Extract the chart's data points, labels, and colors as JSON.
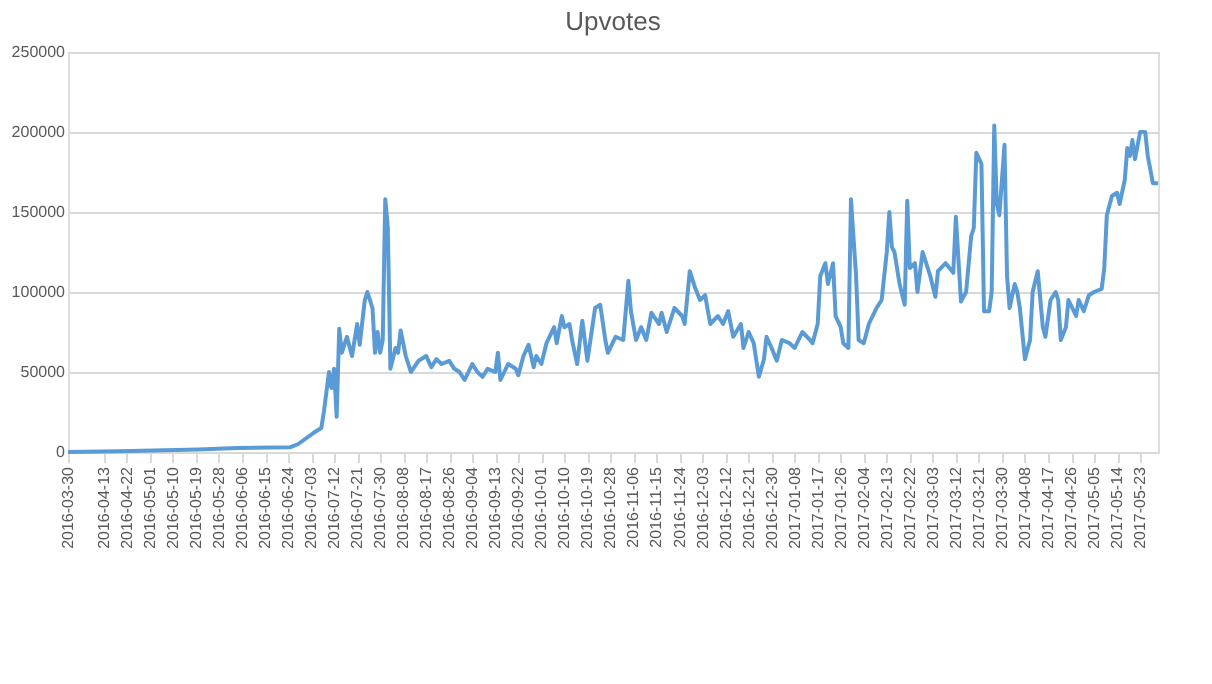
{
  "chart_data": {
    "type": "line",
    "title": "Upvotes",
    "color": "#5b9bd5",
    "grid": "y",
    "x": [
      "2016-03-30",
      "2016-04-19",
      "2016-05-20",
      "2016-06-04",
      "2016-06-25",
      "2016-06-28",
      "2016-07-04",
      "2016-07-07",
      "2016-07-08",
      "2016-07-10",
      "2016-07-11",
      "2016-07-12",
      "2016-07-13",
      "2016-07-14",
      "2016-07-15",
      "2016-07-17",
      "2016-07-19",
      "2016-07-21",
      "2016-07-22",
      "2016-07-24",
      "2016-07-25",
      "2016-07-27",
      "2016-07-28",
      "2016-07-29",
      "2016-07-30",
      "2016-07-31",
      "2016-08-01",
      "2016-08-02",
      "2016-08-03",
      "2016-08-05",
      "2016-08-06",
      "2016-08-07",
      "2016-08-09",
      "2016-08-11",
      "2016-08-14",
      "2016-08-17",
      "2016-08-19",
      "2016-08-21",
      "2016-08-23",
      "2016-08-26",
      "2016-08-28",
      "2016-08-30",
      "2016-09-01",
      "2016-09-04",
      "2016-09-06",
      "2016-09-08",
      "2016-09-10",
      "2016-09-13",
      "2016-09-14",
      "2016-09-15",
      "2016-09-18",
      "2016-09-21",
      "2016-09-22",
      "2016-09-24",
      "2016-09-26",
      "2016-09-28",
      "2016-09-29",
      "2016-10-01",
      "2016-10-03",
      "2016-10-06",
      "2016-10-07",
      "2016-10-09",
      "2016-10-10",
      "2016-10-12",
      "2016-10-13",
      "2016-10-15",
      "2016-10-17",
      "2016-10-19",
      "2016-10-22",
      "2016-10-24",
      "2016-10-26",
      "2016-10-27",
      "2016-10-30",
      "2016-11-02",
      "2016-11-04",
      "2016-11-05",
      "2016-11-07",
      "2016-11-09",
      "2016-11-11",
      "2016-11-13",
      "2016-11-16",
      "2016-11-17",
      "2016-11-19",
      "2016-11-22",
      "2016-11-25",
      "2016-11-26",
      "2016-11-28",
      "2016-11-30",
      "2016-12-02",
      "2016-12-04",
      "2016-12-06",
      "2016-12-09",
      "2016-12-11",
      "2016-12-13",
      "2016-12-15",
      "2016-12-18",
      "2016-12-19",
      "2016-12-21",
      "2016-12-23",
      "2016-12-25",
      "2016-12-27",
      "2016-12-28",
      "2016-12-30",
      "2017-01-01",
      "2017-01-03",
      "2017-01-06",
      "2017-01-08",
      "2017-01-11",
      "2017-01-14",
      "2017-01-15",
      "2017-01-17",
      "2017-01-18",
      "2017-01-20",
      "2017-01-21",
      "2017-01-23",
      "2017-01-24",
      "2017-01-26",
      "2017-01-27",
      "2017-01-29",
      "2017-01-30",
      "2017-02-01",
      "2017-02-02",
      "2017-02-04",
      "2017-02-06",
      "2017-02-09",
      "2017-02-11",
      "2017-02-13",
      "2017-02-14",
      "2017-02-15",
      "2017-02-16",
      "2017-02-18",
      "2017-02-20",
      "2017-02-21",
      "2017-02-22",
      "2017-02-24",
      "2017-02-25",
      "2017-02-27",
      "2017-03-01",
      "2017-03-02",
      "2017-03-04",
      "2017-03-05",
      "2017-03-08",
      "2017-03-11",
      "2017-03-12",
      "2017-03-14",
      "2017-03-16",
      "2017-03-18",
      "2017-03-19",
      "2017-03-20",
      "2017-03-22",
      "2017-03-23",
      "2017-03-25",
      "2017-03-26",
      "2017-03-27",
      "2017-03-28",
      "2017-03-29",
      "2017-03-31",
      "2017-04-01",
      "2017-04-02",
      "2017-04-04",
      "2017-04-05",
      "2017-04-06",
      "2017-04-08",
      "2017-04-10",
      "2017-04-11",
      "2017-04-13",
      "2017-04-15",
      "2017-04-16",
      "2017-04-18",
      "2017-04-20",
      "2017-04-21",
      "2017-04-22",
      "2017-04-24",
      "2017-04-25",
      "2017-04-28",
      "2017-04-29",
      "2017-05-01",
      "2017-05-03",
      "2017-05-05",
      "2017-05-08",
      "2017-05-09",
      "2017-05-10",
      "2017-05-12",
      "2017-05-14",
      "2017-05-15",
      "2017-05-17",
      "2017-05-18",
      "2017-05-19",
      "2017-05-20",
      "2017-05-21",
      "2017-05-23",
      "2017-05-25",
      "2017-05-26",
      "2017-05-28",
      "2017-05-30"
    ],
    "values": [
      0,
      500,
      1500,
      2500,
      3000,
      5000,
      12000,
      15000,
      25000,
      50000,
      40000,
      52000,
      22000,
      77000,
      62000,
      72000,
      60000,
      80000,
      67000,
      95000,
      100000,
      90000,
      62000,
      75000,
      62000,
      70000,
      158000,
      140000,
      52000,
      65000,
      62000,
      76000,
      60000,
      50000,
      57000,
      60000,
      53000,
      58000,
      55000,
      57000,
      52000,
      50000,
      45000,
      55000,
      50000,
      47000,
      52000,
      50000,
      62000,
      45000,
      55000,
      52000,
      48000,
      60000,
      67000,
      53000,
      60000,
      55000,
      68000,
      78000,
      68000,
      85000,
      78000,
      80000,
      70000,
      55000,
      82000,
      57000,
      90000,
      92000,
      70000,
      62000,
      72000,
      70000,
      107000,
      88000,
      70000,
      78000,
      70000,
      87000,
      80000,
      87000,
      75000,
      90000,
      85000,
      80000,
      113000,
      103000,
      95000,
      98000,
      80000,
      85000,
      80000,
      88000,
      72000,
      80000,
      65000,
      75000,
      68000,
      47000,
      58000,
      72000,
      65000,
      57000,
      70000,
      68000,
      65000,
      75000,
      70000,
      68000,
      80000,
      110000,
      118000,
      105000,
      118000,
      85000,
      78000,
      68000,
      65000,
      158000,
      110000,
      70000,
      68000,
      80000,
      90000,
      95000,
      125000,
      150000,
      128000,
      125000,
      105000,
      92000,
      157000,
      115000,
      118000,
      100000,
      125000,
      115000,
      110000,
      97000,
      113000,
      118000,
      112000,
      147000,
      94000,
      100000,
      135000,
      140000,
      187000,
      180000,
      88000,
      88000,
      100000,
      204000,
      155000,
      148000,
      192000,
      110000,
      90000,
      105000,
      100000,
      90000,
      58000,
      70000,
      100000,
      113000,
      78000,
      72000,
      95000,
      100000,
      95000,
      70000,
      78000,
      95000,
      85000,
      95000,
      88000,
      98000,
      100000,
      102000,
      115000,
      148000,
      160000,
      162000,
      155000,
      170000,
      190000,
      185000,
      195000,
      183000,
      200000,
      200000,
      185000,
      168000,
      168000
    ],
    "xlim": [
      "2016-03-30",
      "2017-05-30"
    ],
    "xticks": [
      "2016-03-30",
      "2016-04-13",
      "2016-04-22",
      "2016-05-01",
      "2016-05-10",
      "2016-05-19",
      "2016-05-28",
      "2016-06-06",
      "2016-06-15",
      "2016-06-24",
      "2016-07-03",
      "2016-07-12",
      "2016-07-21",
      "2016-07-30",
      "2016-08-08",
      "2016-08-17",
      "2016-08-26",
      "2016-09-04",
      "2016-09-13",
      "2016-09-22",
      "2016-10-01",
      "2016-10-10",
      "2016-10-19",
      "2016-10-28",
      "2016-11-06",
      "2016-11-15",
      "2016-11-24",
      "2016-12-03",
      "2016-12-12",
      "2016-12-21",
      "2016-12-30",
      "2017-01-08",
      "2017-01-17",
      "2017-01-26",
      "2017-02-04",
      "2017-02-13",
      "2017-02-22",
      "2017-03-03",
      "2017-03-12",
      "2017-03-21",
      "2017-03-30",
      "2017-04-08",
      "2017-04-17",
      "2017-04-26",
      "2017-05-05",
      "2017-05-14",
      "2017-05-23"
    ],
    "ylim": [
      0,
      250000
    ],
    "yticks": [
      0,
      50000,
      100000,
      150000,
      200000,
      250000
    ]
  }
}
